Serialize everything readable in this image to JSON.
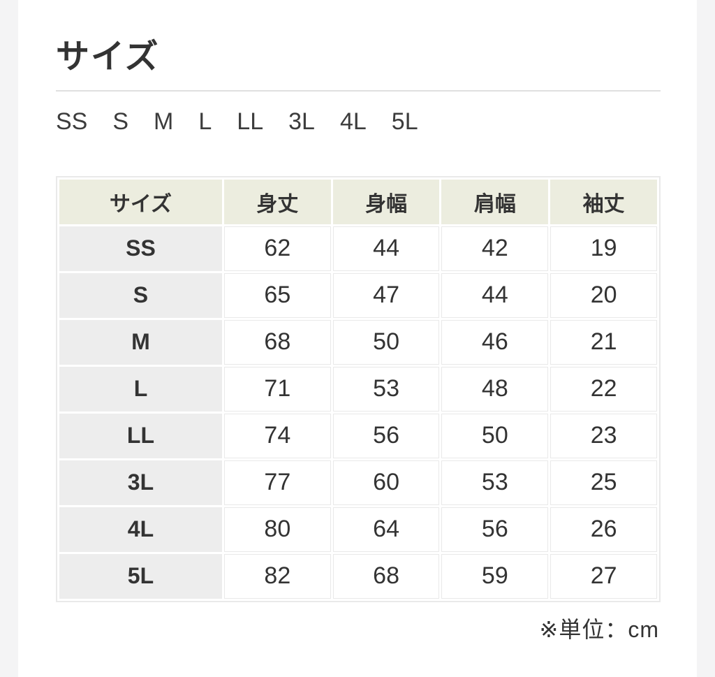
{
  "section": {
    "title": "サイズ"
  },
  "size_selector": {
    "options": [
      "SS",
      "S",
      "M",
      "L",
      "LL",
      "3L",
      "4L",
      "5L"
    ]
  },
  "size_table": {
    "columns": [
      "サイズ",
      "身丈",
      "身幅",
      "肩幅",
      "袖丈"
    ],
    "rows": [
      {
        "size": "SS",
        "values": [
          62,
          44,
          42,
          19
        ]
      },
      {
        "size": "S",
        "values": [
          65,
          47,
          44,
          20
        ]
      },
      {
        "size": "M",
        "values": [
          68,
          50,
          46,
          21
        ]
      },
      {
        "size": "L",
        "values": [
          71,
          53,
          48,
          22
        ]
      },
      {
        "size": "LL",
        "values": [
          74,
          56,
          50,
          23
        ]
      },
      {
        "size": "3L",
        "values": [
          77,
          60,
          53,
          25
        ]
      },
      {
        "size": "4L",
        "values": [
          80,
          64,
          56,
          26
        ]
      },
      {
        "size": "5L",
        "values": [
          82,
          68,
          59,
          27
        ]
      }
    ]
  },
  "footer": {
    "note": "※単位：cm"
  },
  "colors": {
    "page_background": "#f4f4f5",
    "content_background": "#ffffff",
    "header_cell_background": "#eceddf",
    "size_cell_background": "#ededed",
    "cell_border": "#e9e9e9",
    "divider": "#dfdfdf",
    "text": "#333333"
  }
}
